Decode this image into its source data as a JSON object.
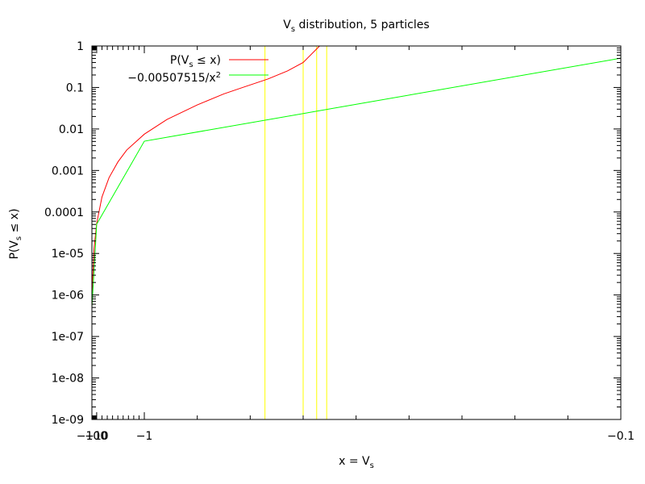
{
  "chart_data": {
    "type": "line",
    "title_main": "V",
    "title_sub": "s",
    "title_rest": " distribution, 5 particles",
    "xlabel_main": "x = V",
    "xlabel_sub": "s",
    "ylabel_pre": "P(V",
    "ylabel_sub": "s",
    "ylabel_post": " ≤ x)",
    "x_scale": "reciprocal",
    "y_scale": "log",
    "xlim": [
      -100,
      -0.1
    ],
    "ylim": [
      1e-09,
      1
    ],
    "x_ticks": [
      {
        "value": -100,
        "label": "−100"
      },
      {
        "value": -10,
        "label": "−10"
      },
      {
        "value": -1,
        "label": "−1"
      },
      {
        "value": -0.1,
        "label": "−0.1"
      }
    ],
    "x_minor_ticks": [
      -50,
      -33.3333,
      -25,
      -20,
      -16.6667,
      -14.2857,
      -12.5,
      -11.1111,
      -5,
      -3.33333,
      -2.5,
      -2,
      -1.66667,
      -1.42857,
      -1.25,
      -1.11111,
      -0.5,
      -0.333333,
      -0.25,
      -0.2,
      -0.166667,
      -0.142857,
      -0.125,
      -0.111111
    ],
    "y_ticks": [
      {
        "value": 1,
        "label": "1"
      },
      {
        "value": 0.1,
        "label": "0.1"
      },
      {
        "value": 0.01,
        "label": "0.01"
      },
      {
        "value": 0.001,
        "label": "0.001"
      },
      {
        "value": 0.0001,
        "label": "0.0001"
      },
      {
        "value": 1e-05,
        "label": "1e-05"
      },
      {
        "value": 1e-06,
        "label": "1e-06"
      },
      {
        "value": 1e-07,
        "label": "1e-07"
      },
      {
        "value": 1e-08,
        "label": "1e-08"
      },
      {
        "value": 1e-09,
        "label": "1e-09"
      }
    ],
    "grid": false,
    "legend_position": "top-left",
    "series": [
      {
        "legend_pre": "P(V",
        "legend_sub": "s",
        "legend_post": " ≤ x)",
        "color": "#ff0000",
        "x": [
          -100,
          -50,
          -20,
          -10,
          -5,
          -3,
          -2,
          -1.5,
          -1,
          -0.7,
          -0.5,
          -0.4,
          -0.35,
          -0.3,
          -0.27,
          -0.25,
          -0.232
        ],
        "y": [
          5e-07,
          2.05e-06,
          1.3e-05,
          5.3e-05,
          0.00023,
          0.00067,
          0.0016,
          0.0031,
          0.0075,
          0.017,
          0.038,
          0.07,
          0.1,
          0.16,
          0.25,
          0.4,
          1
        ]
      },
      {
        "legend_pre": "−0.00507515/x",
        "legend_sup": "2",
        "color": "#00ff00",
        "x": [
          -100,
          -10,
          -1,
          -0.1
        ],
        "y": [
          5.07515e-07,
          5.07515e-05,
          0.00507515,
          0.507515
        ]
      }
    ],
    "vertical_lines": {
      "color": "#ffff00",
      "x": [
        -0.305,
        -0.25,
        -0.235,
        -0.225
      ]
    }
  }
}
